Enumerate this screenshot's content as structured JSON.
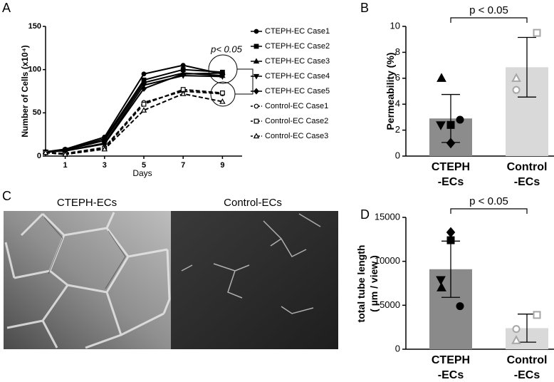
{
  "panels": [
    "A",
    "B",
    "C",
    "D"
  ],
  "micrograph": {
    "labels": [
      "CTEPH-ECs",
      "Control-ECs"
    ]
  },
  "chart_data": [
    {
      "type": "line",
      "x_label": "Days",
      "y_label": "Number of Cells (x10⁴)",
      "annotation": "p< 0.05",
      "x": [
        0,
        1,
        3,
        5,
        7,
        9
      ],
      "xlim": [
        0,
        10
      ],
      "xticks": [
        1,
        3,
        5,
        7,
        9
      ],
      "ylim": [
        0,
        150
      ],
      "yticks": [
        0,
        50,
        100,
        150
      ],
      "series": [
        {
          "name": "CTEPH-EC Case1",
          "color": "#000000",
          "marker": "circle",
          "open": false,
          "dashed": false,
          "values": [
            5,
            8,
            22,
            95,
            105,
            95
          ]
        },
        {
          "name": "CTEPH-EC Case2",
          "color": "#000000",
          "marker": "square",
          "open": false,
          "dashed": false,
          "values": [
            4,
            7,
            20,
            88,
            100,
            97
          ]
        },
        {
          "name": "CTEPH-EC Case3",
          "color": "#000000",
          "marker": "triangle",
          "open": false,
          "dashed": false,
          "values": [
            5,
            7,
            18,
            85,
            96,
            93
          ]
        },
        {
          "name": "CTEPH-EC Case4",
          "color": "#000000",
          "marker": "triangle-down",
          "open": false,
          "dashed": false,
          "values": [
            5,
            6,
            15,
            82,
            93,
            92
          ]
        },
        {
          "name": "CTEPH-EC Case5",
          "color": "#000000",
          "marker": "diamond",
          "open": false,
          "dashed": false,
          "values": [
            5,
            6,
            14,
            78,
            95,
            96
          ]
        },
        {
          "name": "Control-EC Case1",
          "color": "#000000",
          "marker": "circle",
          "open": true,
          "dashed": true,
          "values": [
            4,
            3,
            10,
            62,
            75,
            72
          ]
        },
        {
          "name": "Control-EC Case2",
          "color": "#000000",
          "marker": "square",
          "open": true,
          "dashed": true,
          "values": [
            4,
            2,
            9,
            60,
            77,
            73
          ]
        },
        {
          "name": "Control-EC Case3",
          "color": "#000000",
          "marker": "triangle",
          "open": true,
          "dashed": true,
          "values": [
            4,
            2,
            8,
            53,
            72,
            63
          ]
        }
      ]
    },
    {
      "type": "bar",
      "y_label": "Permeability (%)",
      "annotation": "p < 0.05",
      "categories": [
        "CTEPH\n-ECs",
        "Control\n-ECs"
      ],
      "values": [
        2.9,
        6.85
      ],
      "errors": [
        1.85,
        2.3
      ],
      "colors": [
        "#8c8c8c",
        "#d9d9d9"
      ],
      "points": [
        [
          2.8,
          2.4,
          6.0,
          2.4,
          1.0
        ],
        [
          5.1,
          9.5,
          6.0
        ]
      ],
      "point_markers": [
        [
          "circle",
          "square",
          "triangle",
          "triangle-down",
          "diamond"
        ],
        [
          "circle",
          "square",
          "triangle"
        ]
      ],
      "point_colors": [
        "#000000",
        "#a6a6a6"
      ],
      "point_open": [
        false,
        true
      ],
      "ylim": [
        0,
        10
      ],
      "yticks": [
        0,
        2,
        4,
        6,
        8,
        10
      ]
    },
    {
      "type": "bar",
      "y_label": "total tube length\n( µm / view )",
      "annotation": "p < 0.05",
      "categories": [
        "CTEPH\n-ECs",
        "Control\n-ECs"
      ],
      "values": [
        9100,
        2400
      ],
      "errors": [
        3200,
        1600
      ],
      "colors": [
        "#8a8a8a",
        "#d9d9d9"
      ],
      "points": [
        [
          4900,
          12400,
          7000,
          7900,
          13300
        ],
        [
          2300,
          3900,
          1000
        ]
      ],
      "point_markers": [
        [
          "circle",
          "square",
          "triangle",
          "triangle-down",
          "diamond"
        ],
        [
          "circle",
          "square",
          "triangle"
        ]
      ],
      "point_colors": [
        "#000000",
        "#a6a6a6"
      ],
      "point_open": [
        false,
        true
      ],
      "ylim": [
        0,
        15000
      ],
      "yticks": [
        0,
        5000,
        10000,
        15000
      ]
    }
  ]
}
